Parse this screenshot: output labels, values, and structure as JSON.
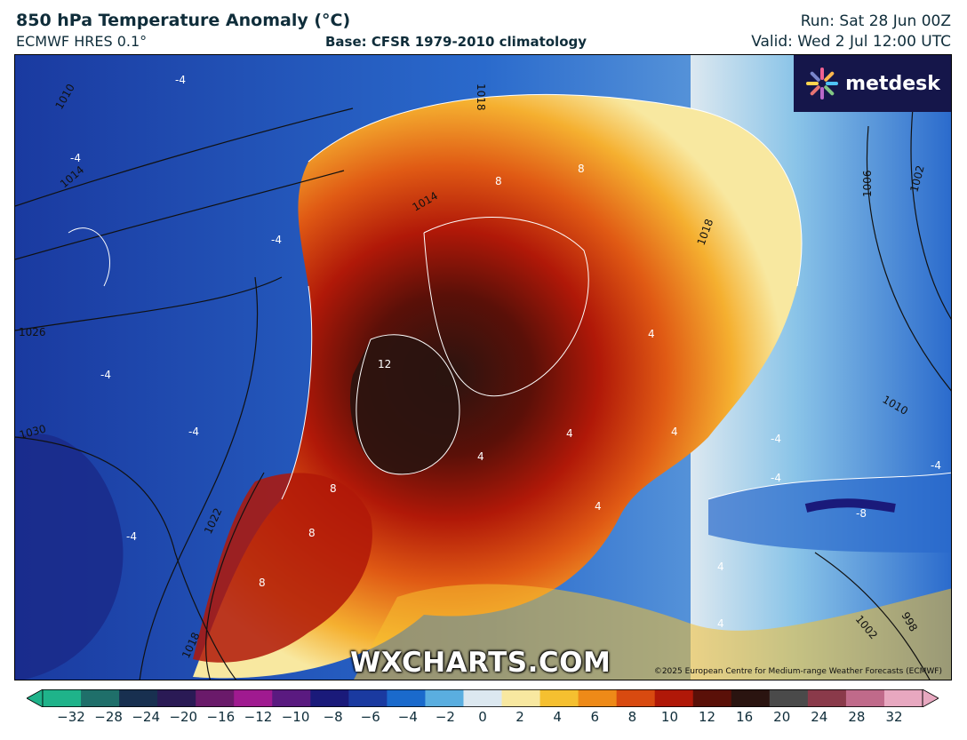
{
  "header": {
    "title": "850 hPa Temperature Anomaly (°C)",
    "model": "ECMWF HRES 0.1°",
    "base": "Base: CFSR 1979-2010 climatology",
    "run": "Run: Sat 28 Jun 00Z",
    "valid": "Valid: Wed 2 Jul 12:00 UTC"
  },
  "brand": {
    "logo_text": "metdesk",
    "watermark": "WXCHARTS.COM",
    "credit": "©2025 European Centre for Medium-range Weather Forecasts (ECMWF)"
  },
  "map": {
    "isobar_labels": [
      "1010",
      "1014",
      "1014",
      "1026",
      "1030",
      "1022",
      "1018",
      "1006",
      "1002",
      "1010",
      "998",
      "1002",
      "1018",
      "1018"
    ],
    "anomaly_labels": [
      "-4",
      "-4",
      "-4",
      "-4",
      "-4",
      "-4",
      "8",
      "8",
      "12",
      "4",
      "4",
      "4",
      "8",
      "8",
      "8",
      "-4",
      "-4",
      "-4",
      "-8",
      "4",
      "4",
      "4",
      "4"
    ]
  },
  "colorbar": {
    "ticks": [
      "−32",
      "−28",
      "−24",
      "−20",
      "−16",
      "−12",
      "−10",
      "−8",
      "−6",
      "−4",
      "−2",
      "0",
      "2",
      "4",
      "6",
      "8",
      "10",
      "12",
      "16",
      "20",
      "24",
      "28",
      "32"
    ],
    "colors": [
      "#1fb38a",
      "#1f6f6a",
      "#183050",
      "#2a1a55",
      "#6a1a6a",
      "#a01a90",
      "#5a1a80",
      "#1a1a7a",
      "#1a3aa0",
      "#1a6acc",
      "#5aaee0",
      "#dce8f0",
      "#f8e8a0",
      "#f5c030",
      "#ee8a18",
      "#d84a10",
      "#b01808",
      "#5a1008",
      "#2a1410",
      "#4a4a4a",
      "#8a3a4a",
      "#c06a8a",
      "#e8a8c0"
    ]
  }
}
